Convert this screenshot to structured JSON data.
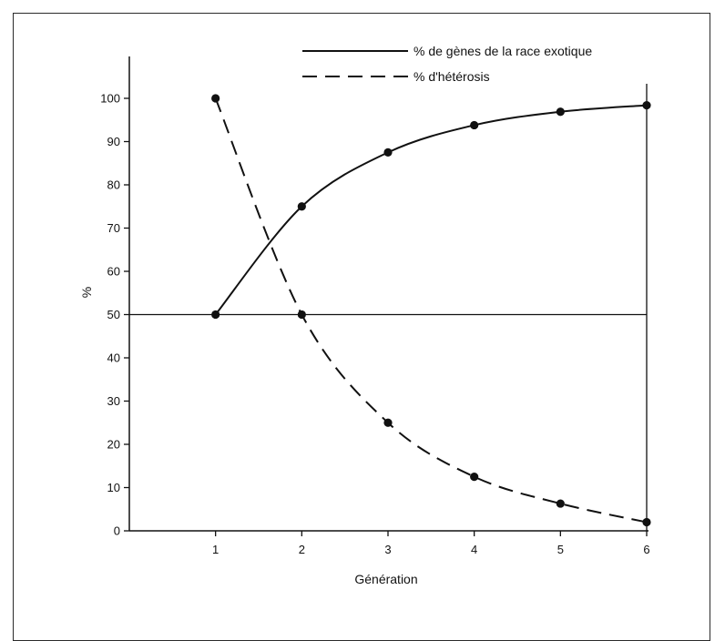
{
  "chart_data": {
    "type": "line",
    "title": "",
    "xlabel": "Génération",
    "ylabel": "%",
    "x": [
      1,
      2,
      3,
      4,
      5,
      6
    ],
    "xlim": [
      0,
      6
    ],
    "ylim": [
      0,
      110
    ],
    "yticks": [
      0,
      10,
      20,
      30,
      40,
      50,
      60,
      70,
      80,
      90,
      100
    ],
    "xticks": [
      1,
      2,
      3,
      4,
      5,
      6
    ],
    "reference_line_y": 50,
    "grid": false,
    "legend_position": "top-right",
    "series": [
      {
        "name": "% de gènes de la race exotique",
        "style": "solid",
        "color": "#111111",
        "values": [
          50,
          75,
          87.5,
          93.8,
          96.9,
          98.4
        ]
      },
      {
        "name": "% d'hétérosis",
        "style": "dashed",
        "color": "#111111",
        "values": [
          100,
          50,
          25,
          12.5,
          6.3,
          2.0
        ]
      }
    ]
  }
}
